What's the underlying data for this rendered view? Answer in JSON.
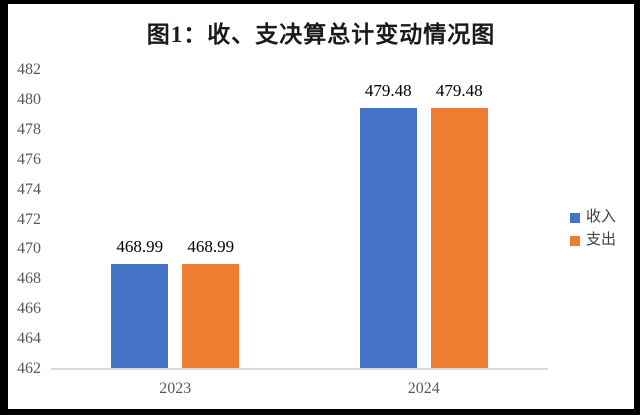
{
  "chart": {
    "title": "图1：收、支决算总计变动情况图"
  },
  "chart_data": {
    "type": "bar",
    "title": "图1：收、支决算总计变动情况图",
    "categories": [
      "2023",
      "2024"
    ],
    "series": [
      {
        "name": "收入",
        "color": "#4472C4",
        "values": [
          468.99,
          479.48
        ],
        "labels": [
          "468.99",
          "479.48"
        ]
      },
      {
        "name": "支出",
        "color": "#ED7D31",
        "values": [
          468.99,
          479.48
        ],
        "labels": [
          "468.99",
          "479.48"
        ]
      }
    ],
    "ylim": [
      462,
      482
    ],
    "ytick_step": 2,
    "yticks": [
      462,
      464,
      466,
      468,
      470,
      472,
      474,
      476,
      478,
      480,
      482
    ],
    "grid": false,
    "legend_position": "right",
    "value_labels_shown": true
  },
  "colors": {
    "series_income": "#4472C4",
    "series_expense": "#ED7D31",
    "axis_text": "#595959",
    "baseline": "#D9D9D9",
    "value_label": "#000000",
    "outer_border": "#000000"
  }
}
